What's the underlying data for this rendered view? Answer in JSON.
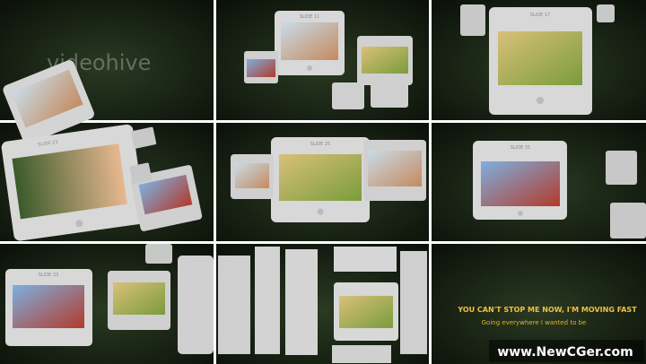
{
  "watermark": "videohive",
  "slides": [
    {
      "label": "SLIDE 11"
    },
    {
      "label": "SLIDE 17"
    },
    {
      "label": "SLIDE 23"
    },
    {
      "label": "SLIDE 25"
    },
    {
      "label": "SLIDE 31"
    },
    {
      "label": "SLIDE 33"
    }
  ],
  "lyrics": {
    "line1": "YOU CAN'T STOP ME NOW, I'M MOVING FAST",
    "line2": "Going everywhere I wanted to be"
  },
  "footer": "www.NewCGer.com"
}
